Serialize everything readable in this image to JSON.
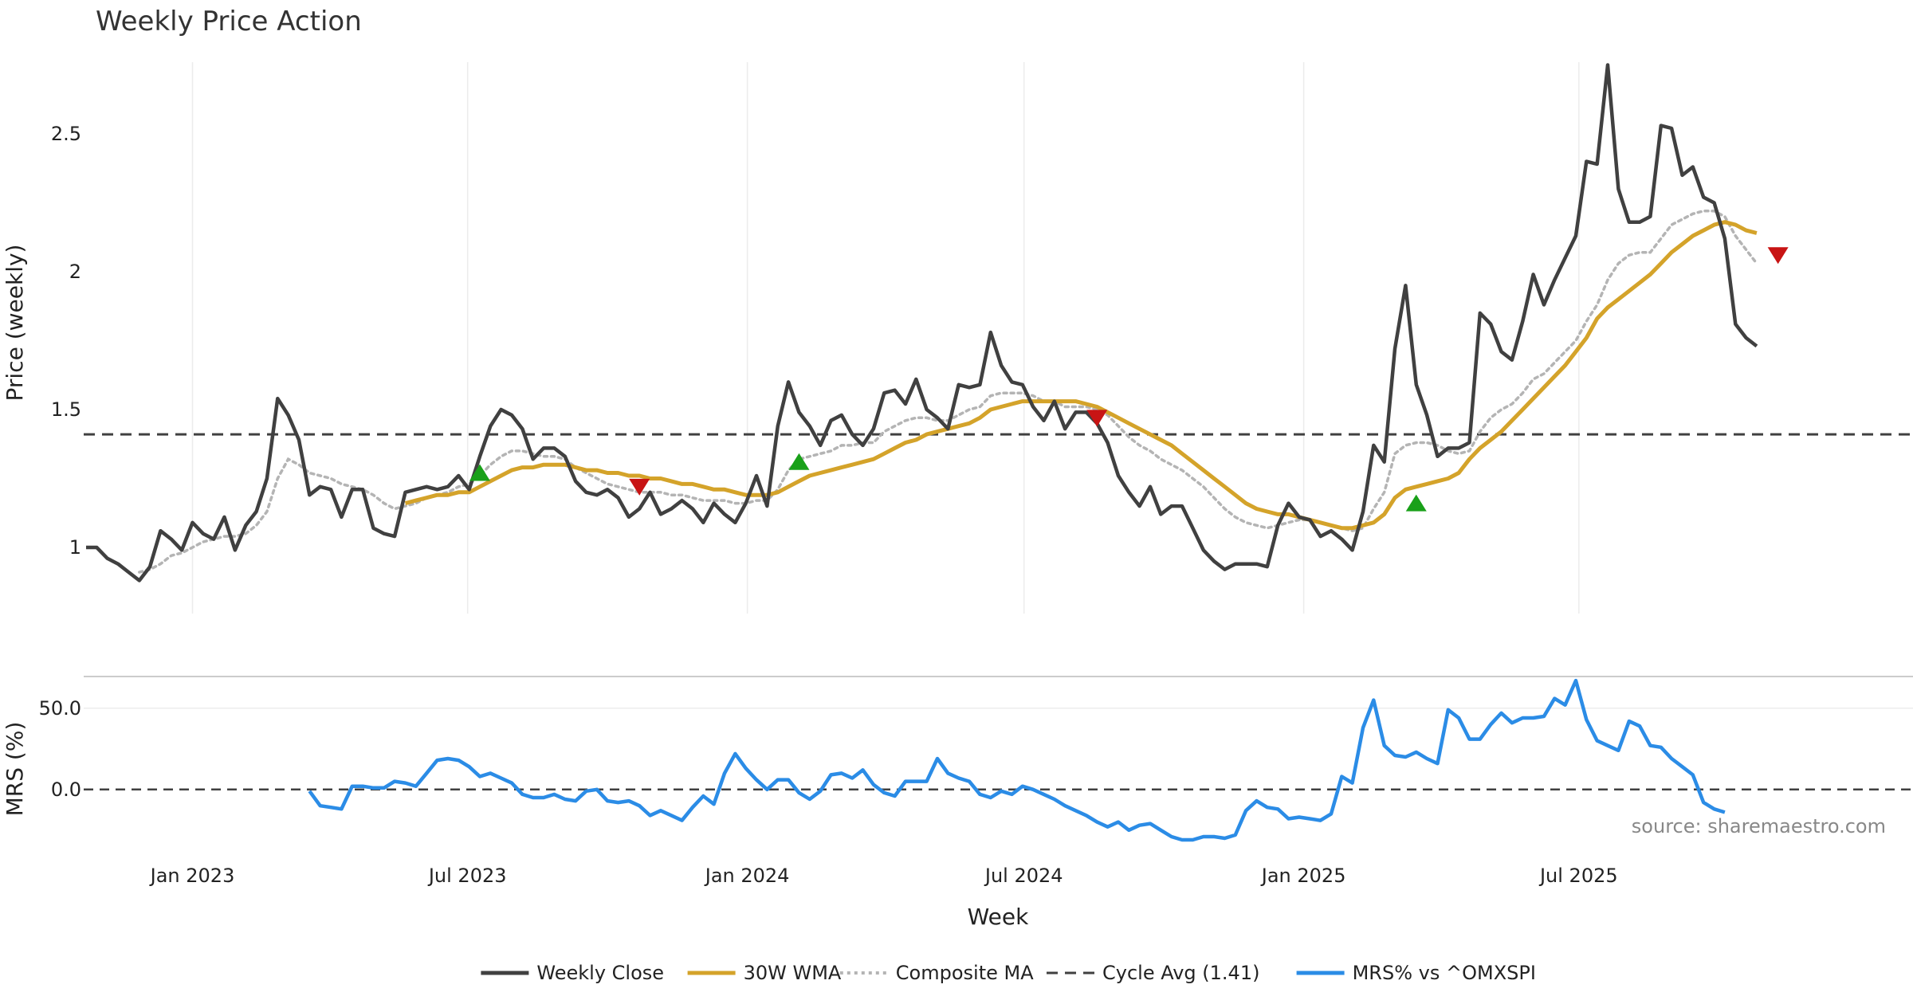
{
  "chart_data": {
    "type": "line",
    "title": "Weekly Price Action",
    "xlabel": "Week",
    "watermark": "source: sharemaestro.com",
    "x_ticks": [
      {
        "label": "Jan 2023",
        "date": "2023-01-01"
      },
      {
        "label": "Jul 2023",
        "date": "2023-07-01"
      },
      {
        "label": "Jan 2024",
        "date": "2024-01-01"
      },
      {
        "label": "Jul 2024",
        "date": "2024-07-01"
      },
      {
        "label": "Jan 2025",
        "date": "2025-01-01"
      },
      {
        "label": "Jul 2025",
        "date": "2025-07-01"
      }
    ],
    "x_start": "2022-10-23",
    "x_week_step": 1,
    "price_panel": {
      "ylabel": "Price (weekly)",
      "ylim": [
        0.76,
        2.76
      ],
      "yticks": [
        {
          "v": 1,
          "label": "1"
        },
        {
          "v": 1.5,
          "label": "1.5"
        },
        {
          "v": 2,
          "label": "2"
        },
        {
          "v": 2.5,
          "label": "2.5"
        }
      ],
      "cycle_avg": 1.41,
      "weekly_close": [
        1.0,
        1.0,
        0.96,
        0.94,
        0.91,
        0.88,
        0.93,
        1.06,
        1.03,
        0.99,
        1.09,
        1.05,
        1.03,
        1.11,
        0.99,
        1.08,
        1.13,
        1.25,
        1.54,
        1.48,
        1.39,
        1.19,
        1.22,
        1.21,
        1.11,
        1.21,
        1.21,
        1.07,
        1.05,
        1.04,
        1.2,
        1.21,
        1.22,
        1.21,
        1.22,
        1.26,
        1.21,
        1.33,
        1.44,
        1.5,
        1.48,
        1.43,
        1.32,
        1.36,
        1.36,
        1.33,
        1.24,
        1.2,
        1.19,
        1.21,
        1.18,
        1.11,
        1.14,
        1.2,
        1.12,
        1.14,
        1.17,
        1.14,
        1.09,
        1.16,
        1.12,
        1.09,
        1.16,
        1.26,
        1.15,
        1.44,
        1.6,
        1.49,
        1.44,
        1.37,
        1.46,
        1.48,
        1.41,
        1.37,
        1.43,
        1.56,
        1.57,
        1.52,
        1.61,
        1.5,
        1.47,
        1.43,
        1.59,
        1.58,
        1.59,
        1.78,
        1.66,
        1.6,
        1.59,
        1.51,
        1.46,
        1.53,
        1.43,
        1.49,
        1.49,
        1.45,
        1.38,
        1.26,
        1.2,
        1.15,
        1.22,
        1.12,
        1.15,
        1.15,
        1.07,
        0.99,
        0.95,
        0.92,
        0.94,
        0.94,
        0.94,
        0.93,
        1.08,
        1.16,
        1.11,
        1.1,
        1.04,
        1.06,
        1.03,
        0.99,
        1.13,
        1.37,
        1.31,
        1.72,
        1.95,
        1.59,
        1.48,
        1.33,
        1.36,
        1.36,
        1.38,
        1.85,
        1.81,
        1.71,
        1.68,
        1.82,
        1.99,
        1.88,
        1.97,
        2.05,
        2.13,
        2.4,
        2.39,
        2.75,
        2.3,
        2.18,
        2.18,
        2.2,
        2.53,
        2.52,
        2.35,
        2.38,
        2.27,
        2.25,
        2.12,
        1.81,
        1.76,
        1.73
      ],
      "wma_30": [
        null,
        null,
        null,
        null,
        null,
        null,
        null,
        null,
        null,
        null,
        null,
        null,
        null,
        null,
        null,
        null,
        null,
        null,
        null,
        null,
        null,
        null,
        null,
        null,
        null,
        null,
        null,
        null,
        null,
        null,
        1.16,
        1.17,
        1.18,
        1.19,
        1.19,
        1.2,
        1.2,
        1.22,
        1.24,
        1.26,
        1.28,
        1.29,
        1.29,
        1.3,
        1.3,
        1.3,
        1.29,
        1.28,
        1.28,
        1.27,
        1.27,
        1.26,
        1.26,
        1.25,
        1.25,
        1.24,
        1.23,
        1.23,
        1.22,
        1.21,
        1.21,
        1.2,
        1.19,
        1.19,
        1.19,
        1.2,
        1.22,
        1.24,
        1.26,
        1.27,
        1.28,
        1.29,
        1.3,
        1.31,
        1.32,
        1.34,
        1.36,
        1.38,
        1.39,
        1.41,
        1.42,
        1.43,
        1.44,
        1.45,
        1.47,
        1.5,
        1.51,
        1.52,
        1.53,
        1.53,
        1.53,
        1.53,
        1.53,
        1.53,
        1.52,
        1.51,
        1.49,
        1.47,
        1.45,
        1.43,
        1.41,
        1.39,
        1.37,
        1.34,
        1.31,
        1.28,
        1.25,
        1.22,
        1.19,
        1.16,
        1.14,
        1.13,
        1.12,
        1.12,
        1.11,
        1.1,
        1.09,
        1.08,
        1.07,
        1.07,
        1.08,
        1.09,
        1.12,
        1.18,
        1.21,
        1.22,
        1.23,
        1.24,
        1.25,
        1.27,
        1.32,
        1.36,
        1.39,
        1.42,
        1.46,
        1.5,
        1.54,
        1.58,
        1.62,
        1.66,
        1.71,
        1.76,
        1.83,
        1.87,
        1.9,
        1.93,
        1.96,
        1.99,
        2.03,
        2.07,
        2.1,
        2.13,
        2.15,
        2.17,
        2.18,
        2.17,
        2.15,
        2.14
      ],
      "composite_ma": [
        null,
        null,
        null,
        null,
        null,
        0.91,
        0.92,
        0.94,
        0.97,
        0.98,
        1.0,
        1.02,
        1.03,
        1.04,
        1.04,
        1.05,
        1.08,
        1.13,
        1.25,
        1.32,
        1.3,
        1.27,
        1.26,
        1.25,
        1.23,
        1.22,
        1.21,
        1.19,
        1.16,
        1.14,
        1.15,
        1.16,
        1.18,
        1.19,
        1.2,
        1.22,
        1.23,
        1.26,
        1.3,
        1.33,
        1.35,
        1.35,
        1.34,
        1.33,
        1.33,
        1.32,
        1.29,
        1.27,
        1.25,
        1.23,
        1.22,
        1.21,
        1.2,
        1.2,
        1.2,
        1.19,
        1.19,
        1.18,
        1.17,
        1.17,
        1.17,
        1.16,
        1.16,
        1.17,
        1.17,
        1.21,
        1.28,
        1.32,
        1.33,
        1.34,
        1.35,
        1.37,
        1.37,
        1.38,
        1.38,
        1.42,
        1.44,
        1.46,
        1.47,
        1.47,
        1.46,
        1.46,
        1.48,
        1.5,
        1.51,
        1.55,
        1.56,
        1.56,
        1.56,
        1.55,
        1.53,
        1.53,
        1.51,
        1.51,
        1.51,
        1.5,
        1.48,
        1.44,
        1.4,
        1.37,
        1.35,
        1.32,
        1.3,
        1.28,
        1.25,
        1.22,
        1.18,
        1.14,
        1.11,
        1.09,
        1.08,
        1.07,
        1.08,
        1.09,
        1.1,
        1.1,
        1.09,
        1.08,
        1.07,
        1.06,
        1.07,
        1.14,
        1.2,
        1.34,
        1.37,
        1.38,
        1.38,
        1.37,
        1.35,
        1.34,
        1.35,
        1.42,
        1.47,
        1.5,
        1.52,
        1.56,
        1.61,
        1.63,
        1.67,
        1.71,
        1.75,
        1.82,
        1.88,
        1.97,
        2.03,
        2.06,
        2.07,
        2.07,
        2.12,
        2.17,
        2.19,
        2.21,
        2.22,
        2.22,
        2.2,
        2.13,
        2.08,
        2.03
      ],
      "buy_signals": [
        {
          "idx": 37,
          "y": 1.27
        },
        {
          "idx": 67,
          "y": 1.31
        },
        {
          "idx": 125,
          "y": 1.16
        }
      ],
      "sell_signals": [
        {
          "idx": 52,
          "y": 1.22
        },
        {
          "idx": 95,
          "y": 1.47
        },
        {
          "idx": 159,
          "y": 2.06
        }
      ]
    },
    "mrs_panel": {
      "ylabel": "MRS (%)",
      "ylim": [
        -30,
        70
      ],
      "yticks": [
        {
          "v": 0,
          "label": "0.0"
        },
        {
          "v": 50,
          "label": "50.0"
        }
      ],
      "zero_line": 0,
      "start_idx": 21,
      "mrs_values": [
        -1,
        -10,
        -11,
        -12,
        2,
        2,
        1,
        1,
        5,
        4,
        2,
        10,
        18,
        19,
        18,
        14,
        8,
        10,
        7,
        4,
        -3,
        -5,
        -5,
        -3,
        -6,
        -7,
        -1,
        0,
        -7,
        -8,
        -7,
        -10,
        -16,
        -13,
        -16,
        -19,
        -11,
        -4,
        -9,
        10,
        22,
        13,
        6,
        0,
        6,
        6,
        -2,
        -6,
        -1,
        9,
        10,
        7,
        12,
        3,
        -2,
        -4,
        5,
        5,
        5,
        19,
        10,
        7,
        5,
        -3,
        -5,
        -1,
        -3,
        2,
        0,
        -3,
        -6,
        -10,
        -13,
        -16,
        -20,
        -23,
        -20,
        -25,
        -22,
        -21,
        -25,
        -29,
        -31,
        -31,
        -29,
        -29,
        -30,
        -28,
        -13,
        -7,
        -11,
        -12,
        -18,
        -17,
        -18,
        -19,
        -15,
        8,
        4,
        38,
        55,
        27,
        21,
        20,
        23,
        19,
        16,
        49,
        44,
        31,
        31,
        40,
        47,
        41,
        44,
        44,
        45,
        56,
        52,
        67,
        43,
        30,
        27,
        24,
        42,
        39,
        27,
        26,
        19,
        14,
        9,
        -8,
        -12,
        -14
      ]
    },
    "legend": [
      {
        "label": "Weekly Close",
        "color": "#404040",
        "style": "solid"
      },
      {
        "label": "30W WMA",
        "color": "#d4a32a",
        "style": "solid"
      },
      {
        "label": "Composite MA",
        "color": "#b4b4b4",
        "style": "dotted"
      },
      {
        "label": "Cycle Avg (1.41)",
        "color": "#404040",
        "style": "dashed"
      },
      {
        "label": "MRS% vs ^OMXSPI",
        "color": "#2b8ce6",
        "style": "solid"
      }
    ],
    "colors": {
      "close": "#404040",
      "wma": "#d4a32a",
      "composite": "#b4b4b4",
      "mrs": "#2b8ce6",
      "buy": "#19a019",
      "sell": "#c81414",
      "grid": "#ececec"
    }
  }
}
